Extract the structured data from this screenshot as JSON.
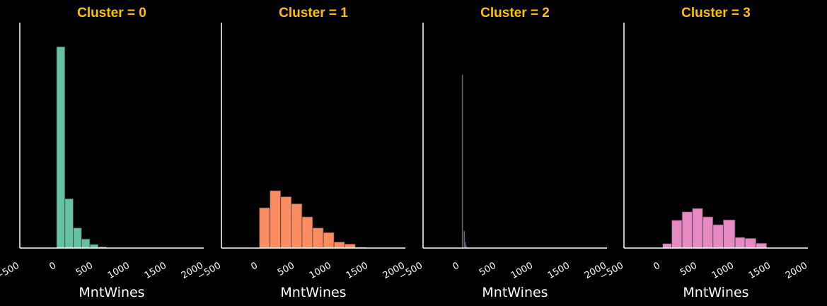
{
  "colors": {
    "background": "#000000",
    "axis": "#ffffff",
    "title": "#ffc000",
    "bar_edge": "#3b3b3b"
  },
  "chart_data": [
    {
      "type": "bar",
      "title": "Cluster = 0",
      "xlabel": "MntWines",
      "ylabel": "",
      "xlim": [
        -500,
        2000
      ],
      "xticks": [
        -500,
        0,
        500,
        1000,
        1500,
        2000
      ],
      "y_max": 1.12,
      "grid": false,
      "color": "#66c2a5",
      "bin_edges": [
        0,
        113,
        226,
        339,
        452,
        565,
        678
      ],
      "values": [
        1.0,
        0.245,
        0.1,
        0.045,
        0.018,
        0.006
      ]
    },
    {
      "type": "bar",
      "title": "Cluster = 1",
      "xlabel": "MntWines",
      "ylabel": "",
      "xlim": [
        -500,
        2000
      ],
      "xticks": [
        -500,
        0,
        500,
        1000,
        1500,
        2000
      ],
      "y_max": 1.12,
      "grid": false,
      "color": "#fc8d62",
      "bin_edges": [
        15,
        160,
        305,
        450,
        595,
        740,
        885,
        1030,
        1175,
        1320,
        1465
      ],
      "values": [
        0.2,
        0.285,
        0.255,
        0.22,
        0.155,
        0.1,
        0.077,
        0.03,
        0.02,
        0.004
      ]
    },
    {
      "type": "bar",
      "title": "Cluster = 2",
      "xlabel": "MntWines",
      "ylabel": "",
      "xlim": [
        -500,
        2000
      ],
      "xticks": [
        -500,
        0,
        500,
        1000,
        1500,
        2000
      ],
      "y_max": 1.12,
      "grid": false,
      "color": "#8da0cb",
      "bin_edges": [
        30,
        42,
        54,
        66,
        78,
        90,
        102
      ],
      "values": [
        0.86,
        0.0,
        0.085,
        0.03,
        0.015,
        0.005
      ]
    },
    {
      "type": "bar",
      "title": "Cluster = 3",
      "xlabel": "MntWines",
      "ylabel": "",
      "xlim": [
        -500,
        2000
      ],
      "xticks": [
        -500,
        0,
        500,
        1000,
        1500,
        2000
      ],
      "y_max": 1.12,
      "grid": false,
      "color": "#e78ac3",
      "bin_edges": [
        25,
        150,
        290,
        430,
        570,
        710,
        850,
        1010,
        1145,
        1295,
        1440
      ],
      "values": [
        0.022,
        0.138,
        0.18,
        0.197,
        0.155,
        0.116,
        0.14,
        0.053,
        0.048,
        0.024
      ]
    }
  ]
}
